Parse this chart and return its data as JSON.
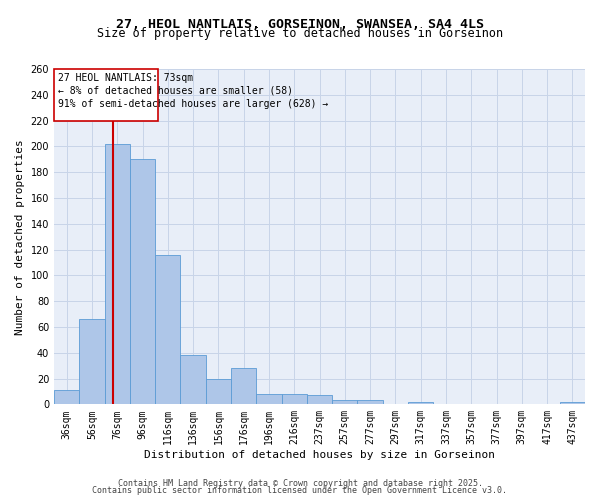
{
  "title_line1": "27, HEOL NANTLAIS, GORSEINON, SWANSEA, SA4 4LS",
  "title_line2": "Size of property relative to detached houses in Gorseinon",
  "xlabel": "Distribution of detached houses by size in Gorseinon",
  "ylabel": "Number of detached properties",
  "categories": [
    "36sqm",
    "56sqm",
    "76sqm",
    "96sqm",
    "116sqm",
    "136sqm",
    "156sqm",
    "176sqm",
    "196sqm",
    "216sqm",
    "237sqm",
    "257sqm",
    "277sqm",
    "297sqm",
    "317sqm",
    "337sqm",
    "357sqm",
    "377sqm",
    "397sqm",
    "417sqm",
    "437sqm"
  ],
  "values": [
    11,
    66,
    202,
    190,
    116,
    38,
    20,
    28,
    8,
    8,
    7,
    3,
    3,
    0,
    2,
    0,
    0,
    0,
    0,
    0,
    2
  ],
  "bar_color": "#aec6e8",
  "bar_edge_color": "#5b9bd5",
  "bar_width": 1.0,
  "property_label": "27 HEOL NANTLAIS: 73sqm",
  "annotation_line1": "← 8% of detached houses are smaller (58)",
  "annotation_line2": "91% of semi-detached houses are larger (628) →",
  "vline_color": "#cc0000",
  "annotation_box_color": "#cc0000",
  "ylim": [
    0,
    260
  ],
  "yticks": [
    0,
    20,
    40,
    60,
    80,
    100,
    120,
    140,
    160,
    180,
    200,
    220,
    240,
    260
  ],
  "grid_color": "#c8d4e8",
  "bg_color": "#e8eef8",
  "footer_line1": "Contains HM Land Registry data © Crown copyright and database right 2025.",
  "footer_line2": "Contains public sector information licensed under the Open Government Licence v3.0.",
  "title_fontsize": 9.5,
  "subtitle_fontsize": 8.5,
  "axis_label_fontsize": 8,
  "tick_fontsize": 7,
  "annotation_fontsize": 7,
  "footer_fontsize": 6
}
